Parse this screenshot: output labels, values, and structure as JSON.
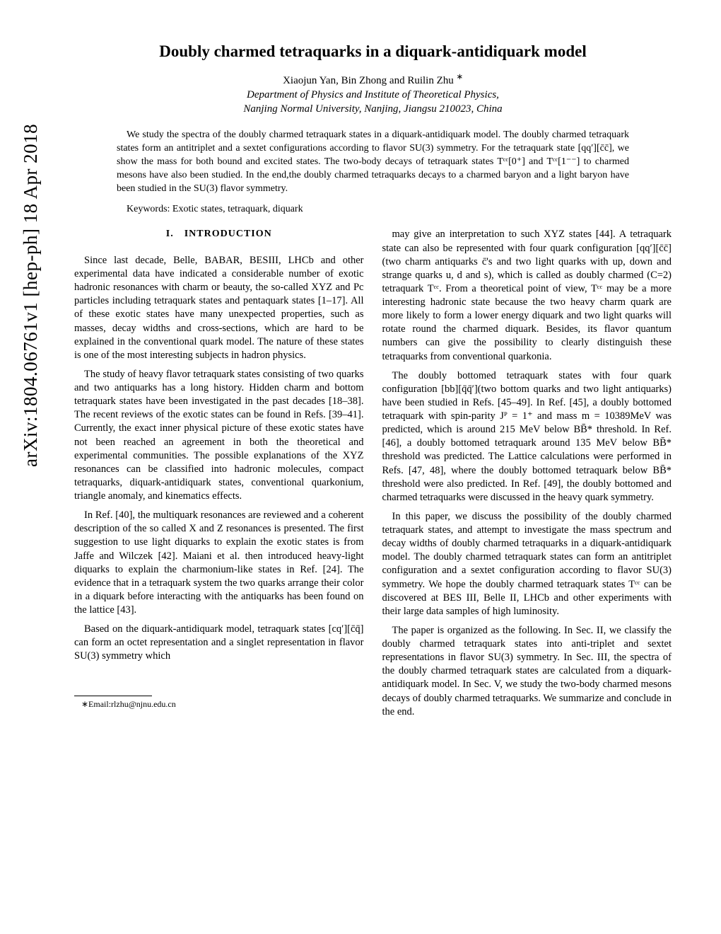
{
  "arxiv": "arXiv:1804.06761v1  [hep-ph]  18 Apr 2018",
  "title": "Doubly charmed tetraquarks in a diquark-antidiquark model",
  "authors": "Xiaojun Yan, Bin Zhong and Ruilin Zhu ",
  "authors_marker": "∗",
  "affil1": "Department of Physics and Institute of Theoretical Physics,",
  "affil2": "Nanjing Normal University, Nanjing, Jiangsu 210023, China",
  "abstract": "We study the spectra of the doubly charmed tetraquark states in a diquark-antidiquark model. The doubly charmed tetraquark states form an antitriplet and a sextet configurations according to flavor SU(3) symmetry. For the tetraquark state [qq′][c̄c̄], we show the mass for both bound and excited states. The two-body decays of tetraquark states Tᶜᶜ[0⁺] and Tᶜᶜ[1⁻⁻] to charmed mesons have also been studied. In the end,the doubly charmed tetraquarks decays to a charmed baryon and a light baryon have been studied in the SU(3) flavor symmetry.",
  "keywords": "Keywords: Exotic states, tetraquark, diquark",
  "section_head": "I. INTRODUCTION",
  "p1": "Since last decade, Belle, BABAR, BESIII, LHCb and other experimental data have indicated a considerable number of exotic hadronic resonances with charm or beauty, the so-called XYZ and Pc particles including tetraquark states and pentaquark states [1–17]. All of these exotic states have many unexpected properties, such as masses, decay widths and cross-sections, which are hard to be explained in the conventional quark model. The nature of these states is one of the most interesting subjects in hadron physics.",
  "p2": "The study of heavy flavor tetraquark states consisting of two quarks and two antiquarks has a long history. Hidden charm and bottom tetraquark states have been investigated in the past decades [18–38]. The recent reviews of the exotic states can be found in Refs. [39–41]. Currently, the exact inner physical picture of these exotic states have not been reached an agreement in both the theoretical and experimental communities. The possible explanations of the XYZ resonances can be classified into hadronic molecules, compact tetraquarks, diquark-antidiquark states, conventional quarkonium, triangle anomaly, and kinematics effects.",
  "p3": "In Ref. [40], the multiquark resonances are reviewed and a coherent description of the so called X and Z resonances is presented. The first suggestion to use light diquarks to explain the exotic states is from Jaffe and Wilczek [42]. Maiani et al. then introduced heavy-light diquarks to explain the charmonium-like states in Ref. [24]. The evidence that in a tetraquark system the two quarks arrange their color in a diquark before interacting with the antiquarks has been found on the lattice [43].",
  "p4": "Based on the diquark-antidiquark model, tetraquark states [cq′][c̄q̄] can form an octet representation and a singlet representation in flavor SU(3) symmetry which",
  "footnote": "∗Email:rlzhu@njnu.edu.cn",
  "p5": "may give an interpretation to such XYZ states [44]. A tetraquark state can also be represented with four quark configuration [qq′][c̄c̄](two charm antiquarks c̄'s and two light quarks with up, down and strange quarks u, d and s), which is called as doubly charmed (C=2) tetraquark Tᶜᶜ. From a theoretical point of view, Tᶜᶜ may be a more interesting hadronic state because the two heavy charm quark are more likely to form a lower energy diquark and two light quarks will rotate round the charmed diquark. Besides, its flavor quantum numbers can give the possibility to clearly distinguish these tetraquarks from conventional quarkonia.",
  "p6": "The doubly bottomed tetraquark states with four quark configuration [bb][q̄q̄′](two bottom quarks and two light antiquarks) have been studied in Refs. [45–49]. In Ref. [45], a doubly bottomed tetraquark with spin-parity Jᴾ = 1⁺ and mass m = 10389MeV was predicted, which is around 215 MeV below BB̄* threshold. In Ref. [46], a doubly bottomed tetraquark around 135 MeV below BB̄* threshold was predicted. The Lattice calculations were performed in Refs. [47, 48], where the doubly bottomed tetraquark below BB̄* threshold were also predicted. In Ref. [49], the doubly bottomed and charmed tetraquarks were discussed in the heavy quark symmetry.",
  "p7": "In this paper, we discuss the possibility of the doubly charmed tetraquark states, and attempt to investigate the mass spectrum and decay widths of doubly charmed tetraquarks in a diquark-antidiquark model. The doubly charmed tetraquark states can form an antitriplet configuration and a sextet configuration according to flavor SU(3) symmetry. We hope the doubly charmed tetraquark states Tᶜᶜ can be discovered at BES III, Belle II, LHCb and other experiments with their large data samples of high luminosity.",
  "p8": "The paper is organized as the following. In Sec. II, we classify the doubly charmed tetraquark states into anti-triplet and sextet representations in flavor SU(3) symmetry. In Sec. III, the spectra of the doubly charmed tetraquark states are calculated from a diquark-antidiquark model. In Sec. V, we study the two-body charmed mesons decays of doubly charmed tetraquarks. We summarize and conclude in the end."
}
